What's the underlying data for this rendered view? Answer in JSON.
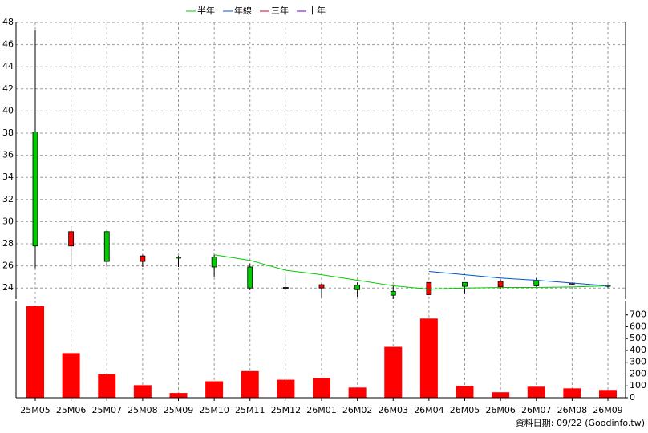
{
  "chart_data": [
    {
      "type": "candlestick",
      "open": [
        38.1,
        27.8,
        29.1,
        26.4,
        26.8,
        26.8,
        25.9,
        24.0,
        24.0,
        24.25,
        23.7,
        23.4,
        24.5,
        24.1,
        24.7,
        24.35,
        24.25
      ],
      "high": [
        47.3,
        29.6,
        29.2,
        27.0,
        26.9,
        27.0,
        26.2,
        25.2,
        24.4,
        24.5,
        24.3,
        24.5,
        24.5,
        24.75,
        24.9,
        24.45,
        24.3
      ],
      "low": [
        25.8,
        25.7,
        25.9,
        25.9,
        25.9,
        25.0,
        23.8,
        23.8,
        23.1,
        23.2,
        23.0,
        23.4,
        23.45,
        23.9,
        24.1,
        24.3,
        24.0
      ],
      "close": [
        27.8,
        29.1,
        26.4,
        26.9,
        26.7,
        25.9,
        24.0,
        24.05,
        24.3,
        23.85,
        23.35,
        24.5,
        24.15,
        24.6,
        24.2,
        24.45,
        24.15
      ],
      "up_color": "#ff0000",
      "down_color": "#00cc00",
      "series": [
        {
          "name": "半年",
          "color": "#00cc00",
          "values": [
            null,
            null,
            null,
            null,
            null,
            27.0,
            26.5,
            25.6,
            25.2,
            24.7,
            24.2,
            23.9,
            24.0,
            24.05,
            24.05,
            24.1,
            24.2
          ]
        },
        {
          "name": "年線",
          "color": "#0055cc",
          "values": [
            null,
            null,
            null,
            null,
            null,
            null,
            null,
            null,
            null,
            null,
            null,
            25.5,
            25.2,
            24.9,
            24.7,
            24.45,
            24.2
          ]
        },
        {
          "name": "三年",
          "color": "#cc0033",
          "values": [
            null,
            null,
            null,
            null,
            null,
            null,
            null,
            null,
            null,
            null,
            null,
            null,
            null,
            null,
            null,
            null,
            null
          ]
        },
        {
          "name": "十年",
          "color": "#6600cc",
          "values": [
            null,
            null,
            null,
            null,
            null,
            null,
            null,
            null,
            null,
            null,
            null,
            null,
            null,
            null,
            null,
            null,
            null
          ]
        }
      ],
      "ylim": [
        23.0,
        48
      ],
      "yticks": [
        24,
        26,
        28,
        30,
        32,
        34,
        36,
        38,
        40,
        42,
        44,
        46,
        48
      ],
      "grid": true,
      "legend": "top"
    },
    {
      "type": "bar",
      "categories": [
        "25M05",
        "25M06",
        "25M07",
        "25M08",
        "25M09",
        "25M10",
        "25M11",
        "25M12",
        "26M01",
        "26M02",
        "26M03",
        "26M04",
        "26M05",
        "26M06",
        "26M07",
        "26M08",
        "26M09"
      ],
      "values": [
        775,
        377,
        199,
        106,
        40,
        139,
        225,
        152,
        166,
        86,
        430,
        669,
        99,
        46,
        93,
        79,
        66
      ],
      "color": "#ff0000",
      "ylim": [
        0,
        820
      ],
      "yticks": [
        0,
        100,
        200,
        300,
        400,
        500,
        600,
        700
      ],
      "grid": true,
      "source": "資料日期: 09/22  (Goodinfo.tw)"
    }
  ]
}
